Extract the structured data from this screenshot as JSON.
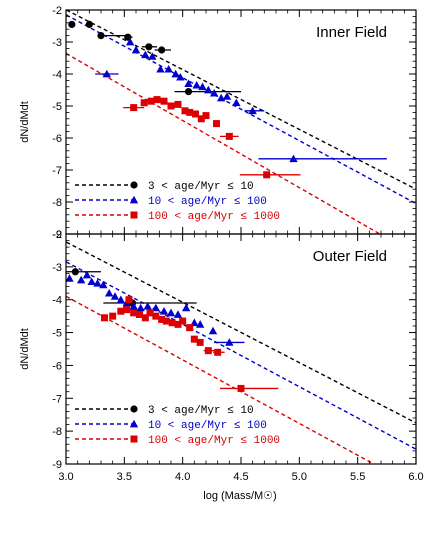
{
  "chart_data": {
    "type": "scatter",
    "xlabel": "log (Mass/M☉)",
    "xlim": [
      3.0,
      6.0
    ],
    "ylim": [
      -9,
      -2
    ],
    "x_ticks": [
      "3.0",
      "3.5",
      "4.0",
      "4.5",
      "5.0",
      "5.5",
      "6.0"
    ],
    "y_ticks": [
      "-2",
      "-3",
      "-4",
      "-5",
      "-6",
      "-7",
      "-8",
      "-9"
    ],
    "grid": false,
    "legend_position": "bottom-left",
    "legend": [
      {
        "label": "3 < age/Myr ≤ 10",
        "color": "#000000",
        "marker": "circle"
      },
      {
        "label": "10 < age/Myr ≤ 100",
        "color": "#0000cc",
        "marker": "triangle"
      },
      {
        "label": "100 < age/Myr ≤ 1000",
        "color": "#dd0000",
        "marker": "square"
      }
    ],
    "panels": [
      {
        "title": "Inner Field",
        "ylabel": "dN/dMdt",
        "series": [
          {
            "color": "#000000",
            "marker": "circle",
            "points": [
              [
                3.05,
                -2.45
              ],
              [
                3.2,
                -2.45
              ],
              [
                3.3,
                -2.8
              ],
              [
                3.53,
                -2.85
              ],
              [
                3.71,
                -3.15
              ],
              [
                3.82,
                -3.25
              ],
              [
                4.05,
                -4.55
              ]
            ],
            "xerr": [
              [
                3.05,
                3.05,
                -2.45
              ],
              [
                3.2,
                3.2,
                -2.45
              ],
              [
                3.3,
                3.55,
                -2.8
              ],
              [
                3.5,
                3.57,
                -2.85
              ],
              [
                3.65,
                3.78,
                -3.15
              ],
              [
                3.76,
                3.9,
                -3.25
              ],
              [
                3.93,
                4.5,
                -4.55
              ]
            ],
            "fit": [
              [
                2.95,
                -1.9
              ],
              [
                6.0,
                -7.6
              ]
            ]
          },
          {
            "color": "#0000cc",
            "marker": "triangle",
            "points": [
              [
                3.35,
                -4.0
              ],
              [
                3.55,
                -3.0
              ],
              [
                3.6,
                -3.25
              ],
              [
                3.68,
                -3.4
              ],
              [
                3.74,
                -3.45
              ],
              [
                3.81,
                -3.85
              ],
              [
                3.88,
                -3.85
              ],
              [
                3.94,
                -4.0
              ],
              [
                3.98,
                -4.1
              ],
              [
                4.05,
                -4.3
              ],
              [
                4.12,
                -4.35
              ],
              [
                4.17,
                -4.4
              ],
              [
                4.22,
                -4.5
              ],
              [
                4.27,
                -4.6
              ],
              [
                4.33,
                -4.75
              ],
              [
                4.38,
                -4.7
              ],
              [
                4.46,
                -4.9
              ],
              [
                4.6,
                -5.15
              ],
              [
                4.95,
                -6.65
              ]
            ],
            "xerr": [
              [
                3.25,
                3.45,
                -4.0
              ],
              [
                4.53,
                4.7,
                -5.15
              ],
              [
                4.65,
                5.75,
                -6.65
              ]
            ],
            "fit": [
              [
                2.95,
                -2.05
              ],
              [
                6.0,
                -8.05
              ]
            ]
          },
          {
            "color": "#dd0000",
            "marker": "square",
            "points": [
              [
                3.58,
                -5.05
              ],
              [
                3.67,
                -4.9
              ],
              [
                3.73,
                -4.85
              ],
              [
                3.78,
                -4.8
              ],
              [
                3.84,
                -4.85
              ],
              [
                3.9,
                -5.0
              ],
              [
                3.96,
                -4.95
              ],
              [
                4.02,
                -5.15
              ],
              [
                4.06,
                -5.2
              ],
              [
                4.11,
                -5.25
              ],
              [
                4.16,
                -5.4
              ],
              [
                4.2,
                -5.3
              ],
              [
                4.29,
                -5.55
              ],
              [
                4.4,
                -5.95
              ],
              [
                4.72,
                -7.15
              ]
            ],
            "xerr": [
              [
                3.49,
                3.67,
                -5.05
              ],
              [
                4.32,
                4.48,
                -5.95
              ],
              [
                4.49,
                5.01,
                -7.15
              ]
            ],
            "fit": [
              [
                2.95,
                -3.25
              ],
              [
                6.0,
                -9.65
              ]
            ]
          }
        ]
      },
      {
        "title": "Outer Field",
        "ylabel": "dN/dMdt",
        "series": [
          {
            "color": "#000000",
            "marker": "circle",
            "points": [
              [
                3.08,
                -3.15
              ],
              [
                3.57,
                -4.1
              ]
            ],
            "xerr": [
              [
                3.0,
                3.3,
                -3.15
              ],
              [
                3.32,
                4.12,
                -4.1
              ]
            ],
            "fit": [
              [
                2.95,
                -2.15
              ],
              [
                6.0,
                -7.75
              ]
            ]
          },
          {
            "color": "#0000cc",
            "marker": "triangle",
            "points": [
              [
                3.03,
                -3.35
              ],
              [
                3.13,
                -3.4
              ],
              [
                3.18,
                -3.25
              ],
              [
                3.22,
                -3.45
              ],
              [
                3.27,
                -3.5
              ],
              [
                3.32,
                -3.55
              ],
              [
                3.37,
                -3.8
              ],
              [
                3.42,
                -3.9
              ],
              [
                3.47,
                -4.0
              ],
              [
                3.52,
                -4.1
              ],
              [
                3.58,
                -4.2
              ],
              [
                3.64,
                -4.25
              ],
              [
                3.7,
                -4.2
              ],
              [
                3.77,
                -4.25
              ],
              [
                3.84,
                -4.35
              ],
              [
                3.9,
                -4.4
              ],
              [
                3.96,
                -4.45
              ],
              [
                4.03,
                -4.25
              ],
              [
                4.1,
                -4.7
              ],
              [
                4.15,
                -4.75
              ],
              [
                4.26,
                -4.95
              ],
              [
                4.4,
                -5.3
              ]
            ],
            "xerr": [
              [
                4.27,
                4.53,
                -5.3
              ]
            ],
            "fit": [
              [
                2.95,
                -2.75
              ],
              [
                6.0,
                -8.55
              ]
            ]
          },
          {
            "color": "#dd0000",
            "marker": "square",
            "points": [
              [
                3.33,
                -4.55
              ],
              [
                3.4,
                -4.5
              ],
              [
                3.47,
                -4.35
              ],
              [
                3.52,
                -4.3
              ],
              [
                3.54,
                -4.0
              ],
              [
                3.58,
                -4.4
              ],
              [
                3.63,
                -4.45
              ],
              [
                3.68,
                -4.55
              ],
              [
                3.72,
                -4.4
              ],
              [
                3.77,
                -4.5
              ],
              [
                3.82,
                -4.6
              ],
              [
                3.86,
                -4.65
              ],
              [
                3.91,
                -4.7
              ],
              [
                3.96,
                -4.75
              ],
              [
                4.0,
                -4.65
              ],
              [
                4.06,
                -4.85
              ],
              [
                4.1,
                -5.2
              ],
              [
                4.15,
                -5.3
              ],
              [
                4.22,
                -5.55
              ],
              [
                4.3,
                -5.6
              ],
              [
                4.5,
                -6.7
              ]
            ],
            "xerr": [
              [
                4.18,
                4.27,
                -5.55
              ],
              [
                4.26,
                4.36,
                -5.6
              ],
              [
                4.32,
                4.82,
                -6.7
              ]
            ],
            "fit": [
              [
                2.95,
                -3.8
              ],
              [
                6.0,
                -9.7
              ]
            ]
          }
        ]
      }
    ]
  }
}
